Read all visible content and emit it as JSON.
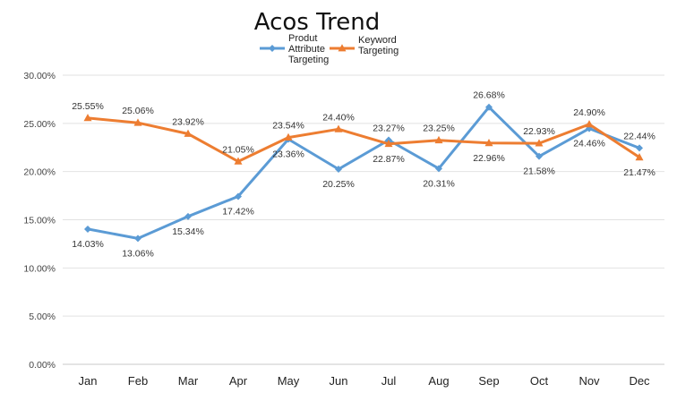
{
  "chart_data": {
    "type": "line",
    "title": "Acos Trend",
    "xlabel": "",
    "ylabel": "",
    "categories": [
      "Jan",
      "Feb",
      "Mar",
      "Apr",
      "May",
      "Jun",
      "Jul",
      "Aug",
      "Sep",
      "Oct",
      "Nov",
      "Dec"
    ],
    "ylim": [
      0,
      30
    ],
    "yticks": [
      "0.00%",
      "5.00%",
      "10.00%",
      "15.00%",
      "20.00%",
      "25.00%",
      "30.00%"
    ],
    "grid": "horizontal",
    "legend_position": "top",
    "series": [
      {
        "name": "Produt Attribute Targeting",
        "legend_lines": [
          "Produt",
          "Attribute",
          "Targeting"
        ],
        "color": "#5b9bd5",
        "marker": "diamond",
        "values": [
          14.03,
          13.06,
          15.34,
          17.42,
          23.36,
          20.25,
          23.27,
          20.31,
          26.68,
          21.58,
          24.46,
          22.44
        ],
        "labels": [
          "14.03%",
          "13.06%",
          "15.34%",
          "17.42%",
          "23.36%",
          "20.25%",
          "23.27%",
          "20.31%",
          "26.68%",
          "21.58%",
          "24.46%",
          "22.44%"
        ]
      },
      {
        "name": "Keyword Targeting",
        "legend_lines": [
          "Keyword",
          "Targeting"
        ],
        "color": "#ed7d31",
        "marker": "triangle",
        "values": [
          25.55,
          25.06,
          23.92,
          21.05,
          23.54,
          24.4,
          22.87,
          23.25,
          22.96,
          22.93,
          24.9,
          21.47
        ],
        "labels": [
          "25.55%",
          "25.06%",
          "23.92%",
          "21.05%",
          "23.54%",
          "24.40%",
          "22.87%",
          "23.25%",
          "22.96%",
          "22.93%",
          "24.90%",
          "21.47%"
        ]
      }
    ]
  }
}
